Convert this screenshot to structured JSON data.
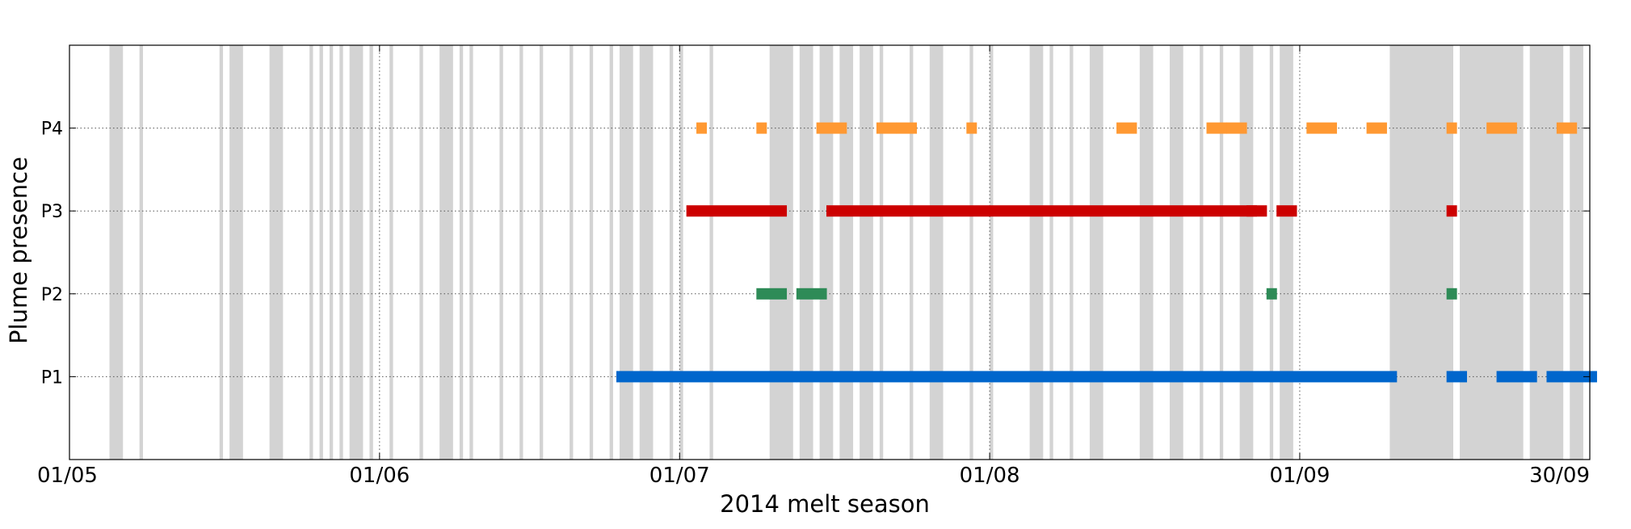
{
  "chart_data": {
    "type": "scatter",
    "xlabel": "2014 melt season",
    "ylabel": "Plume presence",
    "xlim": [
      "2014-05-01",
      "2014-09-30"
    ],
    "x_ticks": [
      {
        "date": "2014-05-01",
        "label": "01/05"
      },
      {
        "date": "2014-06-01",
        "label": "01/06"
      },
      {
        "date": "2014-07-01",
        "label": "01/07"
      },
      {
        "date": "2014-08-01",
        "label": "01/08"
      },
      {
        "date": "2014-09-01",
        "label": "01/09"
      },
      {
        "date": "2014-09-30",
        "label": "30/09"
      }
    ],
    "categories": [
      "P1",
      "P2",
      "P3",
      "P4"
    ],
    "grid": true,
    "colors": {
      "P1": "#0066cc",
      "P2": "#2e8b57",
      "P3": "#cc0000",
      "P4": "#ff9933",
      "shading": "#d3d3d3"
    },
    "series": [
      {
        "name": "P1",
        "values": [
          [
            "2014-06-25",
            "2014-07-12"
          ],
          [
            "2014-07-13",
            "2014-09-10"
          ],
          [
            "2014-09-16",
            "2014-09-17"
          ],
          [
            "2014-09-21",
            "2014-09-24"
          ],
          [
            "2014-09-26",
            "2014-09-30"
          ]
        ]
      },
      {
        "name": "P2",
        "values": [
          [
            "2014-07-09",
            "2014-07-11"
          ],
          [
            "2014-07-13",
            "2014-07-15"
          ],
          [
            "2014-08-29",
            "2014-08-29"
          ],
          [
            "2014-09-16",
            "2014-09-16"
          ]
        ]
      },
      {
        "name": "P3",
        "values": [
          [
            "2014-07-02",
            "2014-07-11"
          ],
          [
            "2014-07-16",
            "2014-08-27"
          ],
          [
            "2014-08-27",
            "2014-08-28"
          ],
          [
            "2014-08-30",
            "2014-08-31"
          ],
          [
            "2014-09-16",
            "2014-09-16"
          ]
        ]
      },
      {
        "name": "P4",
        "values": [
          [
            "2014-07-03",
            "2014-07-03"
          ],
          [
            "2014-07-09",
            "2014-07-09"
          ],
          [
            "2014-07-15",
            "2014-07-17"
          ],
          [
            "2014-07-21",
            "2014-07-22"
          ],
          [
            "2014-07-23",
            "2014-07-24"
          ],
          [
            "2014-07-30",
            "2014-07-30"
          ],
          [
            "2014-08-14",
            "2014-08-15"
          ],
          [
            "2014-08-23",
            "2014-08-24"
          ],
          [
            "2014-08-25",
            "2014-08-26"
          ],
          [
            "2014-09-02",
            "2014-09-04"
          ],
          [
            "2014-09-08",
            "2014-09-09"
          ],
          [
            "2014-09-16",
            "2014-09-16"
          ],
          [
            "2014-09-20",
            "2014-09-22"
          ],
          [
            "2014-09-27",
            "2014-09-28"
          ]
        ]
      }
    ],
    "shaded_periods": [
      [
        "2014-05-05",
        "2014-05-06"
      ],
      [
        "2014-05-08",
        "2014-05-08"
      ],
      [
        "2014-05-16",
        "2014-05-16"
      ],
      [
        "2014-05-17",
        "2014-05-18"
      ],
      [
        "2014-05-21",
        "2014-05-22"
      ],
      [
        "2014-05-25",
        "2014-05-25"
      ],
      [
        "2014-05-26",
        "2014-05-26"
      ],
      [
        "2014-05-27",
        "2014-05-27"
      ],
      [
        "2014-05-28",
        "2014-05-28"
      ],
      [
        "2014-05-29",
        "2014-05-30"
      ],
      [
        "2014-05-31",
        "2014-05-31"
      ],
      [
        "2014-06-02",
        "2014-06-02"
      ],
      [
        "2014-06-05",
        "2014-06-05"
      ],
      [
        "2014-06-07",
        "2014-06-08"
      ],
      [
        "2014-06-09",
        "2014-06-09"
      ],
      [
        "2014-06-10",
        "2014-06-10"
      ],
      [
        "2014-06-13",
        "2014-06-13"
      ],
      [
        "2014-06-15",
        "2014-06-15"
      ],
      [
        "2014-06-17",
        "2014-06-17"
      ],
      [
        "2014-06-20",
        "2014-06-20"
      ],
      [
        "2014-06-22",
        "2014-06-22"
      ],
      [
        "2014-06-24",
        "2014-06-24"
      ],
      [
        "2014-06-25",
        "2014-06-26"
      ],
      [
        "2014-06-27",
        "2014-06-28"
      ],
      [
        "2014-06-30",
        "2014-06-30"
      ],
      [
        "2014-07-01",
        "2014-07-01"
      ],
      [
        "2014-07-04",
        "2014-07-04"
      ],
      [
        "2014-07-10",
        "2014-07-12"
      ],
      [
        "2014-07-13",
        "2014-07-14"
      ],
      [
        "2014-07-15",
        "2014-07-16"
      ],
      [
        "2014-07-17",
        "2014-07-18"
      ],
      [
        "2014-07-19",
        "2014-07-20"
      ],
      [
        "2014-07-21",
        "2014-07-21"
      ],
      [
        "2014-07-24",
        "2014-07-24"
      ],
      [
        "2014-07-26",
        "2014-07-27"
      ],
      [
        "2014-07-30",
        "2014-07-30"
      ],
      [
        "2014-08-01",
        "2014-08-01"
      ],
      [
        "2014-08-05",
        "2014-08-06"
      ],
      [
        "2014-08-07",
        "2014-08-07"
      ],
      [
        "2014-08-09",
        "2014-08-09"
      ],
      [
        "2014-08-11",
        "2014-08-12"
      ],
      [
        "2014-08-16",
        "2014-08-17"
      ],
      [
        "2014-08-19",
        "2014-08-20"
      ],
      [
        "2014-08-22",
        "2014-08-22"
      ],
      [
        "2014-08-24",
        "2014-08-24"
      ],
      [
        "2014-08-26",
        "2014-08-27"
      ],
      [
        "2014-08-29",
        "2014-08-29"
      ],
      [
        "2014-08-30",
        "2014-08-31"
      ],
      [
        "2014-09-10",
        "2014-09-16"
      ],
      [
        "2014-09-17",
        "2014-09-23"
      ],
      [
        "2014-09-24",
        "2014-09-27"
      ],
      [
        "2014-09-28",
        "2014-09-29"
      ]
    ]
  }
}
